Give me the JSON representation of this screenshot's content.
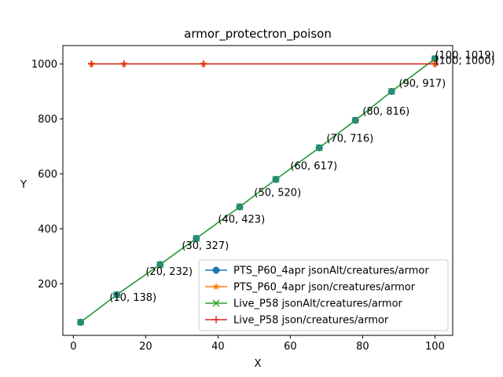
{
  "chart_data": {
    "type": "line",
    "title": "armor_protectron_poison",
    "xlabel": "X",
    "ylabel": "Y",
    "xlim": [
      -2.9,
      104.9
    ],
    "ylim": [
      12.15,
      1066.85
    ],
    "xticks": [
      0,
      20,
      40,
      60,
      80,
      100
    ],
    "yticks": [
      200,
      400,
      600,
      800,
      1000
    ],
    "grid": false,
    "legend_position": "lower-right",
    "series": [
      {
        "name": "PTS_P60_4apr jsonAlt/creatures/armor",
        "color": "#1f77b4",
        "marker": "circle",
        "x": [
          2,
          12,
          24,
          34,
          46,
          56,
          68,
          78,
          88,
          100
        ],
        "y": [
          60,
          160,
          270,
          365,
          480,
          580,
          695,
          795,
          900,
          1019
        ]
      },
      {
        "name": "PTS_P60_4apr json/creatures/armor",
        "color": "#ff7f0e",
        "marker": "star",
        "x": [
          5,
          14,
          36,
          100
        ],
        "y": [
          1000,
          1000,
          1000,
          1000
        ]
      },
      {
        "name": "Live_P58 jsonAlt/creatures/armor",
        "color": "#2ca02c",
        "marker": "x",
        "x": [
          2,
          12,
          24,
          34,
          46,
          56,
          68,
          78,
          88,
          100
        ],
        "y": [
          60,
          160,
          270,
          365,
          480,
          580,
          695,
          795,
          900,
          1019
        ]
      },
      {
        "name": "Live_P58 json/creatures/armor",
        "color": "#d62728",
        "marker": "plus",
        "x": [
          5,
          14,
          36,
          100
        ],
        "y": [
          1000,
          1000,
          1000,
          1000
        ]
      }
    ],
    "annotations": [
      {
        "text": "(10, 138)",
        "x": 10,
        "y": 138
      },
      {
        "text": "(20, 232)",
        "x": 20,
        "y": 232
      },
      {
        "text": "(30, 327)",
        "x": 30,
        "y": 327
      },
      {
        "text": "(40, 423)",
        "x": 40,
        "y": 423
      },
      {
        "text": "(50, 520)",
        "x": 50,
        "y": 520
      },
      {
        "text": "(60, 617)",
        "x": 60,
        "y": 617
      },
      {
        "text": "(70, 716)",
        "x": 70,
        "y": 716
      },
      {
        "text": "(80, 816)",
        "x": 80,
        "y": 816
      },
      {
        "text": "(90, 917)",
        "x": 90,
        "y": 917
      },
      {
        "text": "(100, 1019)",
        "x": 100,
        "y": 1019
      },
      {
        "text": "(100, 1000)",
        "x": 100,
        "y": 1000
      }
    ]
  }
}
